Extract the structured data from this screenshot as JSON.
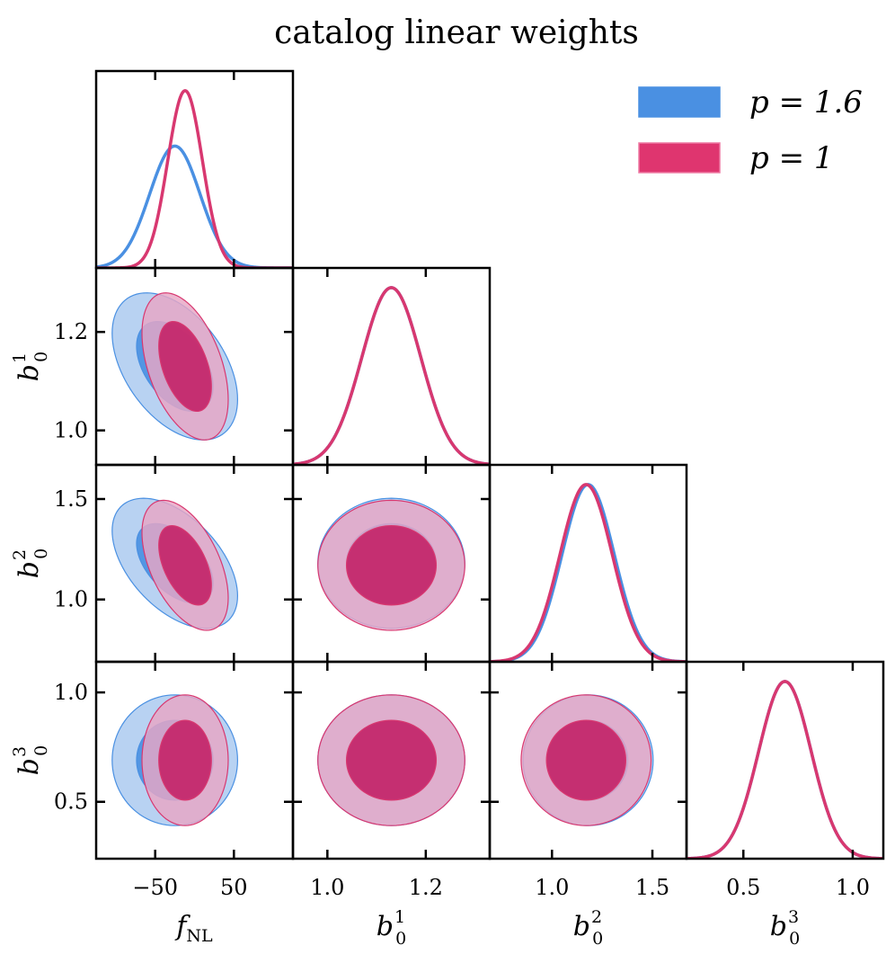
{
  "chart_data": {
    "type": "corner",
    "title": "catalog linear weights",
    "parameters": [
      {
        "id": "fNL",
        "base": "f",
        "sub": "NL",
        "sup": "",
        "ticks": [
          {
            "v": -50,
            "t": "−50"
          },
          {
            "v": 50,
            "t": "50"
          }
        ]
      },
      {
        "id": "b01",
        "base": "b",
        "sub": "0",
        "sup": "1",
        "ticks": [
          {
            "v": 1.0,
            "t": "1.0"
          },
          {
            "v": 1.2,
            "t": "1.2"
          }
        ]
      },
      {
        "id": "b02",
        "base": "b",
        "sub": "0",
        "sup": "2",
        "ticks": [
          {
            "v": 1.0,
            "t": "1.0"
          },
          {
            "v": 1.5,
            "t": "1.5"
          }
        ]
      },
      {
        "id": "b03",
        "base": "b",
        "sub": "0",
        "sup": "3",
        "ticks": [
          {
            "v": 0.5,
            "t": "0.5"
          },
          {
            "v": 1.0,
            "t": "1.0"
          }
        ]
      }
    ],
    "axis_ranges": {
      "fNL": [
        -125,
        125
      ],
      "b01": [
        0.93,
        1.33
      ],
      "b02": [
        0.69,
        1.67
      ],
      "b03": [
        0.24,
        1.14
      ]
    },
    "legend_position": "top-right",
    "series": [
      {
        "name": "p = 1.6",
        "color": "#4a90e2",
        "means": {
          "fNL": -25,
          "b01": 1.13,
          "b02": 1.18,
          "b03": 0.69
        },
        "sigmas": {
          "fNL": 32,
          "b01": 0.06,
          "b02": 0.13,
          "b03": 0.12
        },
        "correlations": {
          "fNL_b01": -0.45,
          "fNL_b02": -0.5,
          "fNL_b03": 0.0,
          "b01_b02": 0.0,
          "b01_b03": 0.0,
          "b02_b03": 0.0
        }
      },
      {
        "name": "p = 1",
        "color": "#e03570",
        "means": {
          "fNL": -12,
          "b01": 1.13,
          "b02": 1.17,
          "b03": 0.69
        },
        "sigmas": {
          "fNL": 22,
          "b01": 0.06,
          "b02": 0.13,
          "b03": 0.12
        },
        "correlations": {
          "fNL_b01": -0.45,
          "fNL_b02": -0.5,
          "fNL_b03": 0.0,
          "b01_b02": 0.0,
          "b01_b03": 0.0,
          "b02_b03": 0.0
        }
      }
    ]
  }
}
